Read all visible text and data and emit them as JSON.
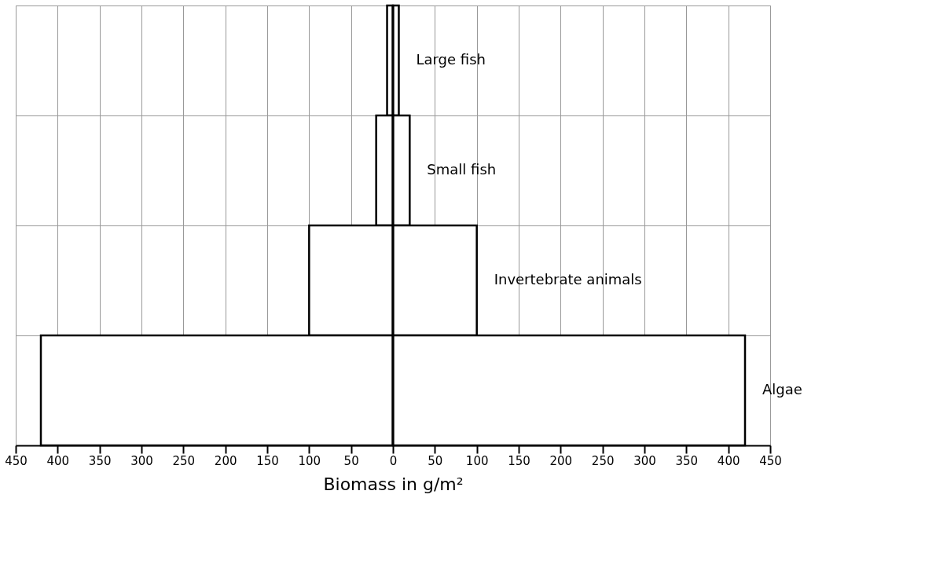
{
  "chart_data": {
    "type": "bar",
    "orientation": "horizontal",
    "stacked": true,
    "categories": [
      "Large fish",
      "Small fish",
      "Invertebrate animals",
      "Algae"
    ],
    "series": [
      {
        "color": "#000000",
        "values": [
          -7,
          -20,
          -100,
          -420
        ]
      },
      {
        "color": "#000000",
        "values": [
          7,
          20,
          100,
          420
        ]
      }
    ],
    "xlabel": "Biomass in g/m²",
    "xlim": [
      -450,
      450
    ],
    "xticks": [
      {
        "value": -450,
        "label": "450"
      },
      {
        "value": -400,
        "label": "400"
      },
      {
        "value": -350,
        "label": "350"
      },
      {
        "value": -300,
        "label": "300"
      },
      {
        "value": -250,
        "label": "250"
      },
      {
        "value": -200,
        "label": "200"
      },
      {
        "value": -150,
        "label": "150"
      },
      {
        "value": -100,
        "label": "100"
      },
      {
        "value": -50,
        "label": "50"
      },
      0,
      50,
      100,
      150,
      200,
      250,
      300,
      350,
      400,
      450
    ],
    "ref_lines": [
      {
        "axis": "x",
        "value": 0,
        "color": "#000000"
      }
    ],
    "grid": true
  }
}
